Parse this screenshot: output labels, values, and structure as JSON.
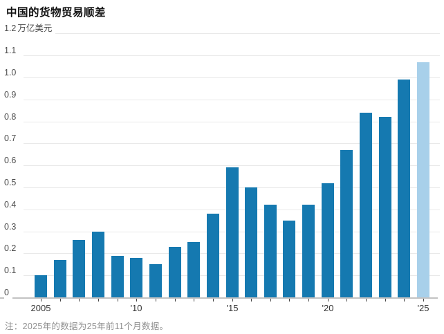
{
  "page": {
    "title": "中国的货物贸易顺差",
    "note": "注：2025年的数据为25年前11个月数据。"
  },
  "chart_data": {
    "type": "bar",
    "title": "中国的货物贸易顺差",
    "unit_label": "万亿美元",
    "categories": [
      2005,
      2006,
      2007,
      2008,
      2009,
      2010,
      2011,
      2012,
      2013,
      2014,
      2015,
      2016,
      2017,
      2018,
      2019,
      2020,
      2021,
      2022,
      2023,
      2024,
      2025
    ],
    "values": [
      0.1,
      0.17,
      0.26,
      0.3,
      0.19,
      0.18,
      0.15,
      0.23,
      0.25,
      0.38,
      0.59,
      0.5,
      0.42,
      0.35,
      0.42,
      0.52,
      0.67,
      0.84,
      0.82,
      0.99,
      1.07
    ],
    "highlight_year": 2025,
    "ylim": [
      0,
      1.2
    ],
    "y_tick_labels": [
      "0",
      "0.1",
      "0.2",
      "0.3",
      "0.4",
      "0.5",
      "0.6",
      "0.7",
      "0.8",
      "0.9",
      "1.0",
      "1.1",
      "1.2"
    ],
    "x_axis_labels": [
      {
        "year": 2005,
        "label": "2005"
      },
      {
        "year": 2010,
        "label": "'10"
      },
      {
        "year": 2015,
        "label": "'15"
      },
      {
        "year": 2020,
        "label": "'20"
      },
      {
        "year": 2025,
        "label": "'25"
      }
    ],
    "grid": true,
    "legend": "none",
    "colors": {
      "bar": "#1579b0",
      "bar_highlight": "#a8d0ea",
      "grid": "#e9e9e9",
      "axis": "#c2c2c2",
      "y_label": "#4d4d4d",
      "x_label": "#333333",
      "title": "#121212",
      "note": "#8f8f8f"
    }
  }
}
